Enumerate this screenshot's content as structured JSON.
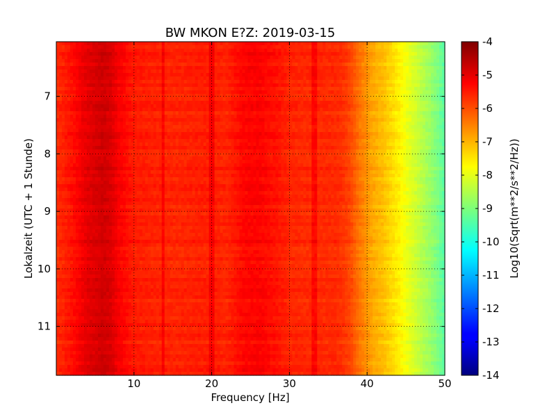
{
  "chart_data": {
    "type": "heatmap",
    "title": "BW MKON E?Z: 2019-03-15",
    "xlabel": "Frequency [Hz]",
    "ylabel": "Lokalzeit (UTC + 1 Stunde)",
    "xlim": [
      0,
      50
    ],
    "ylim": [
      11.85,
      6.05
    ],
    "x_ticks": [
      10,
      20,
      30,
      40,
      50
    ],
    "y_ticks": [
      7,
      8,
      9,
      10,
      11
    ],
    "grid": true,
    "colorbar": {
      "label": "Log10(Sqrt(m**2/s**2/Hz))",
      "range": [
        -14,
        -4
      ],
      "ticks": [
        -4,
        -5,
        -6,
        -7,
        -8,
        -9,
        -10,
        -11,
        -12,
        -13,
        -14
      ],
      "colormap": "jet"
    },
    "spectrum_profile": {
      "frequencies": [
        0,
        2,
        4,
        6,
        7,
        8,
        10,
        12,
        14,
        16,
        18,
        20,
        22,
        24,
        26,
        28,
        30,
        32,
        34,
        36,
        37,
        38,
        39,
        40,
        41,
        42,
        43,
        44,
        45,
        46,
        47,
        48,
        49,
        50
      ],
      "log_amplitude": [
        -5.7,
        -5.4,
        -5.0,
        -4.8,
        -4.9,
        -5.2,
        -5.5,
        -5.55,
        -5.6,
        -5.6,
        -5.55,
        -5.55,
        -5.6,
        -5.3,
        -5.25,
        -5.4,
        -5.6,
        -5.65,
        -5.65,
        -5.65,
        -5.75,
        -6.0,
        -6.4,
        -6.7,
        -6.95,
        -7.1,
        -7.35,
        -7.6,
        -7.9,
        -8.15,
        -8.45,
        -8.7,
        -9.0,
        -9.4
      ]
    },
    "narrow_lines_hz": [
      13.7,
      20.0,
      33.2
    ]
  }
}
